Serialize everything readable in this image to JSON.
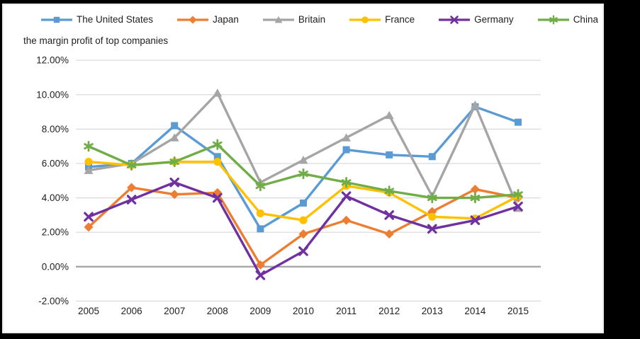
{
  "page": {
    "background_color": "#000000",
    "panel_color": "#ffffff",
    "panel_border_color": "#ececec",
    "gridline_color": "#d9d9d9",
    "zero_line_color": "#a6a6a6",
    "text_color": "#1f1f1f"
  },
  "chart_data": {
    "type": "line",
    "title": "the margin profit of top companies",
    "x": [
      "2005",
      "2006",
      "2007",
      "2008",
      "2009",
      "2010",
      "2011",
      "2012",
      "2013",
      "2014",
      "2015"
    ],
    "series": [
      {
        "name": "The United States",
        "color": "#5B9BD5",
        "marker": "square",
        "values": [
          5.8,
          6.0,
          8.2,
          6.4,
          2.2,
          3.7,
          6.8,
          6.5,
          6.4,
          9.3,
          8.4
        ]
      },
      {
        "name": "Japan",
        "color": "#ED7D31",
        "marker": "diamond",
        "values": [
          2.3,
          4.6,
          4.2,
          4.3,
          0.1,
          1.9,
          2.7,
          1.9,
          3.2,
          4.5,
          4.0
        ]
      },
      {
        "name": "Britain",
        "color": "#A5A5A5",
        "marker": "triangle",
        "values": [
          5.6,
          6.0,
          7.5,
          10.1,
          4.9,
          6.2,
          7.5,
          8.8,
          4.1,
          9.4,
          3.4
        ]
      },
      {
        "name": "France",
        "color": "#FFC000",
        "marker": "circle",
        "values": [
          6.1,
          5.9,
          6.1,
          6.1,
          3.1,
          2.7,
          4.7,
          4.3,
          2.9,
          2.8,
          4.1
        ]
      },
      {
        "name": "Germany",
        "color": "#7030A0",
        "marker": "x",
        "values": [
          2.9,
          3.9,
          4.9,
          4.0,
          -0.5,
          0.9,
          4.1,
          3.0,
          2.2,
          2.7,
          3.5
        ]
      },
      {
        "name": "China",
        "color": "#70AD47",
        "marker": "asterisk",
        "values": [
          7.0,
          5.9,
          6.1,
          7.1,
          4.7,
          5.4,
          4.9,
          4.4,
          4.0,
          4.0,
          4.2
        ]
      }
    ],
    "y_axis": {
      "min": -2,
      "max": 12,
      "step": 2,
      "labels": [
        "12.00%",
        "10.00%",
        "8.00%",
        "6.00%",
        "4.00%",
        "2.00%",
        "0.00%",
        "-2.00%"
      ]
    },
    "grid": true,
    "legend_position": "top"
  }
}
